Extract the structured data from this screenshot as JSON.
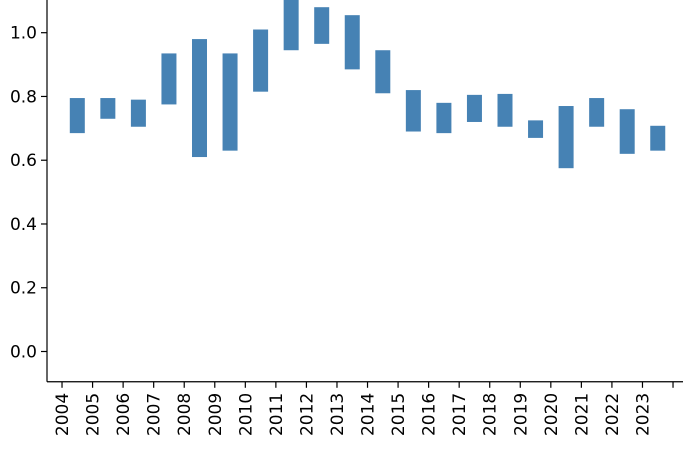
{
  "chart_data": {
    "type": "bar",
    "subtype": "floating-range",
    "title": "",
    "xlabel": "",
    "ylabel": "",
    "ylim": [
      -0.095,
      1.1
    ],
    "yticks": [
      0.0,
      0.2,
      0.4,
      0.6,
      0.8,
      1.0
    ],
    "ytick_labels": [
      "0.0",
      "0.2",
      "0.4",
      "0.6",
      "0.8",
      "1.0"
    ],
    "categories": [
      "2004",
      "2005",
      "2006",
      "2007",
      "2008",
      "2009",
      "2010",
      "2011",
      "2012",
      "2013",
      "2014",
      "2015",
      "2016",
      "2017",
      "2018",
      "2019",
      "2020",
      "2021",
      "2022",
      "2023"
    ],
    "series": [
      {
        "color": "#4682b4",
        "ranges": [
          [
            0.685,
            0.795
          ],
          [
            0.73,
            0.795
          ],
          [
            0.705,
            0.79
          ],
          [
            0.775,
            0.935
          ],
          [
            0.61,
            0.98
          ],
          [
            0.63,
            0.935
          ],
          [
            0.815,
            1.01
          ],
          [
            0.945,
            1.11
          ],
          [
            0.965,
            1.08
          ],
          [
            0.885,
            1.055
          ],
          [
            0.81,
            0.945
          ],
          [
            0.69,
            0.82
          ],
          [
            0.685,
            0.78
          ],
          [
            0.72,
            0.805
          ],
          [
            0.705,
            0.808
          ],
          [
            0.67,
            0.725
          ],
          [
            0.575,
            0.77
          ],
          [
            0.705,
            0.795
          ],
          [
            0.62,
            0.76
          ],
          [
            0.63,
            0.708
          ]
        ]
      }
    ],
    "grid": false,
    "spines": [
      "left",
      "bottom"
    ]
  }
}
